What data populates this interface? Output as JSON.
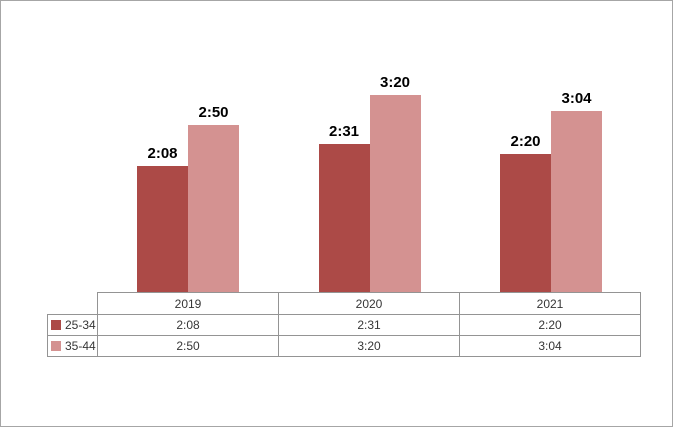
{
  "chart_data": {
    "type": "bar",
    "title": "",
    "xlabel": "",
    "ylabel": "",
    "categories": [
      "2019",
      "2020",
      "2021"
    ],
    "series": [
      {
        "name": "25-34",
        "color": "#ac4a47",
        "value_labels": [
          "2:08",
          "2:31",
          "2:20"
        ],
        "values_minutes": [
          128,
          151,
          140
        ]
      },
      {
        "name": "35-44",
        "color": "#d49291",
        "value_labels": [
          "2:50",
          "3:20",
          "3:04"
        ],
        "values_minutes": [
          170,
          200,
          184
        ]
      }
    ],
    "ylim_minutes": [
      0,
      296
    ],
    "grid": false,
    "legend_position": "table-left",
    "value_label_format": "h:mm",
    "data_table_shown": true
  },
  "table": {
    "column_headers": [
      "2019",
      "2020",
      "2021"
    ],
    "rows": [
      {
        "legend": "25-34",
        "cells": [
          "2:08",
          "2:31",
          "2:20"
        ]
      },
      {
        "legend": "35-44",
        "cells": [
          "2:50",
          "3:20",
          "3:04"
        ]
      }
    ]
  },
  "colors": {
    "series_dark_red": "#ac4a47",
    "series_light_pink": "#d49291",
    "table_border": "#949494",
    "frame_border": "#a6a6a6",
    "value_label_text": "#000000",
    "table_text": "#363636"
  }
}
